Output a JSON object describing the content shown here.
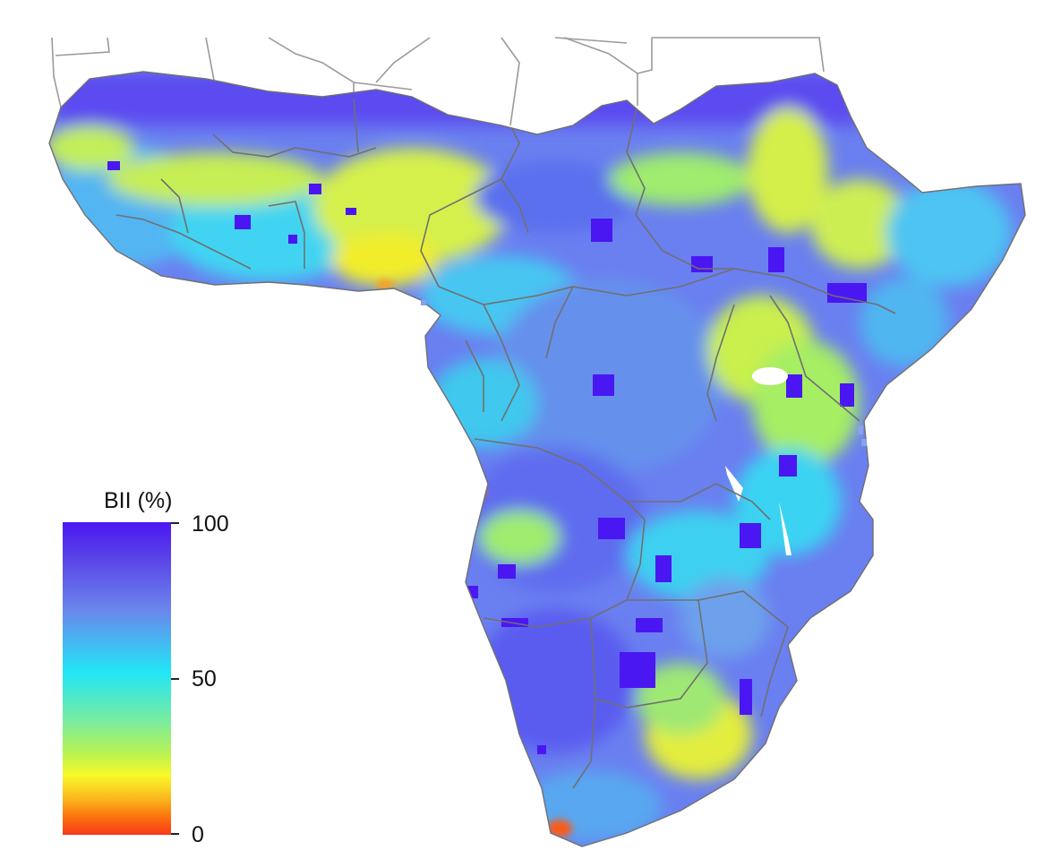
{
  "legend": {
    "title": "BII (%)",
    "ticks": [
      {
        "value": 100,
        "label": "100"
      },
      {
        "value": 50,
        "label": "50"
      },
      {
        "value": 0,
        "label": "0"
      }
    ],
    "colors": [
      "#4a17f2",
      "#6b86ec",
      "#22e6f7",
      "#f8f928",
      "#f8391e"
    ]
  },
  "map": {
    "region": "Sub-Saharan Africa",
    "base_color": "#6a7ff0",
    "high_color": "#4a17f2",
    "mid_color": "#3cd6f5",
    "low_color": "#f0f02c",
    "very_low_color": "#fb5a14",
    "border_color": "#707070"
  }
}
